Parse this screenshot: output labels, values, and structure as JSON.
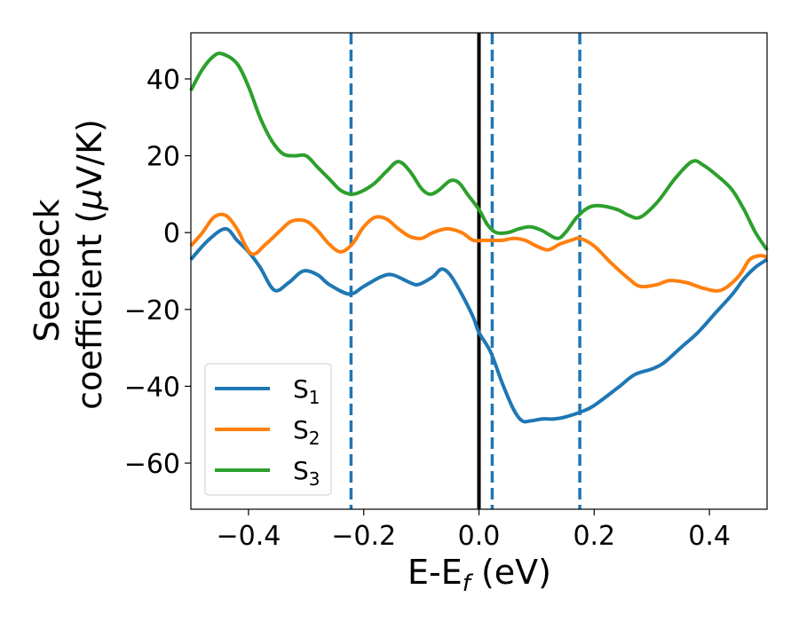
{
  "chart_data": {
    "type": "line",
    "xlabel": "E-E",
    "xlabel_sub": "f",
    "xlabel_unit": " (eV)",
    "ylabel_line1": "Seebeck",
    "ylabel_line2": "coefficient  (",
    "ylabel_mu": "μ",
    "ylabel_unit": "V/K)",
    "xlim": [
      -0.5,
      0.5
    ],
    "ylim": [
      -72,
      52
    ],
    "x_ticks": [
      -0.4,
      -0.2,
      0.0,
      0.2,
      0.4
    ],
    "x_tick_labels": [
      "−0.4",
      "−0.2",
      "0.0",
      "0.2",
      "0.4"
    ],
    "y_ticks": [
      40,
      20,
      0,
      -20,
      -40,
      -60
    ],
    "y_tick_labels": [
      "40",
      "20",
      "0",
      "−20",
      "−40",
      "−60"
    ],
    "grid": false,
    "legend_position": "lower-left",
    "vertical_lines": [
      {
        "x": -0.222,
        "style": "dashed",
        "color": "#1f77b4"
      },
      {
        "x": 0.0,
        "style": "solid",
        "color": "#000000"
      },
      {
        "x": 0.023,
        "style": "dashed",
        "color": "#1f77b4"
      },
      {
        "x": 0.175,
        "style": "dashed",
        "color": "#1f77b4"
      }
    ],
    "series": [
      {
        "name": "S",
        "sub": "1",
        "color": "#1f77b4",
        "points": [
          [
            -0.5,
            -7
          ],
          [
            -0.47,
            -2
          ],
          [
            -0.44,
            1
          ],
          [
            -0.42,
            -2
          ],
          [
            -0.4,
            -5
          ],
          [
            -0.38,
            -9
          ],
          [
            -0.355,
            -15
          ],
          [
            -0.33,
            -13
          ],
          [
            -0.305,
            -10
          ],
          [
            -0.28,
            -11
          ],
          [
            -0.26,
            -13.5
          ],
          [
            -0.225,
            -16
          ],
          [
            -0.2,
            -14
          ],
          [
            -0.17,
            -11.5
          ],
          [
            -0.15,
            -11
          ],
          [
            -0.12,
            -13
          ],
          [
            -0.105,
            -13.5
          ],
          [
            -0.08,
            -11.5
          ],
          [
            -0.065,
            -9.5
          ],
          [
            -0.05,
            -11
          ],
          [
            -0.03,
            -16
          ],
          [
            -0.01,
            -22
          ],
          [
            0,
            -26
          ],
          [
            0.02,
            -31
          ],
          [
            0.04,
            -39
          ],
          [
            0.06,
            -46
          ],
          [
            0.075,
            -49
          ],
          [
            0.09,
            -49
          ],
          [
            0.11,
            -48.5
          ],
          [
            0.13,
            -48.5
          ],
          [
            0.15,
            -48
          ],
          [
            0.18,
            -46.5
          ],
          [
            0.2,
            -45
          ],
          [
            0.24,
            -40.5
          ],
          [
            0.27,
            -37
          ],
          [
            0.3,
            -35.5
          ],
          [
            0.32,
            -34
          ],
          [
            0.35,
            -30
          ],
          [
            0.38,
            -26
          ],
          [
            0.41,
            -21
          ],
          [
            0.44,
            -16
          ],
          [
            0.46,
            -12
          ],
          [
            0.48,
            -9
          ],
          [
            0.5,
            -7
          ]
        ]
      },
      {
        "name": "S",
        "sub": "2",
        "color": "#ff7f0e",
        "points": [
          [
            -0.5,
            -3.5
          ],
          [
            -0.48,
            0
          ],
          [
            -0.46,
            4
          ],
          [
            -0.44,
            4.5
          ],
          [
            -0.42,
            1
          ],
          [
            -0.395,
            -5.5
          ],
          [
            -0.37,
            -3
          ],
          [
            -0.345,
            0.5
          ],
          [
            -0.325,
            3
          ],
          [
            -0.3,
            3
          ],
          [
            -0.28,
            0.5
          ],
          [
            -0.26,
            -3
          ],
          [
            -0.24,
            -5
          ],
          [
            -0.22,
            -3
          ],
          [
            -0.2,
            1.5
          ],
          [
            -0.18,
            4
          ],
          [
            -0.16,
            3.5
          ],
          [
            -0.14,
            1
          ],
          [
            -0.12,
            -1
          ],
          [
            -0.1,
            -1.5
          ],
          [
            -0.08,
            0
          ],
          [
            -0.055,
            1
          ],
          [
            -0.03,
            0
          ],
          [
            -0.01,
            -2
          ],
          [
            0.01,
            -2
          ],
          [
            0.04,
            -2
          ],
          [
            0.06,
            -1.5
          ],
          [
            0.08,
            -2
          ],
          [
            0.1,
            -3.5
          ],
          [
            0.12,
            -4.5
          ],
          [
            0.14,
            -3
          ],
          [
            0.16,
            -2
          ],
          [
            0.175,
            -1.5
          ],
          [
            0.2,
            -3.5
          ],
          [
            0.23,
            -8
          ],
          [
            0.26,
            -12
          ],
          [
            0.28,
            -14
          ],
          [
            0.31,
            -13.5
          ],
          [
            0.33,
            -12.5
          ],
          [
            0.36,
            -13
          ],
          [
            0.39,
            -14.5
          ],
          [
            0.42,
            -15
          ],
          [
            0.45,
            -11.5
          ],
          [
            0.47,
            -7
          ],
          [
            0.49,
            -6
          ],
          [
            0.5,
            -6.5
          ]
        ]
      },
      {
        "name": "S",
        "sub": "3",
        "color": "#2ca02c",
        "points": [
          [
            -0.5,
            37
          ],
          [
            -0.48,
            42.5
          ],
          [
            -0.46,
            46
          ],
          [
            -0.445,
            46.5
          ],
          [
            -0.42,
            44
          ],
          [
            -0.4,
            38
          ],
          [
            -0.38,
            30
          ],
          [
            -0.36,
            24
          ],
          [
            -0.34,
            20.5
          ],
          [
            -0.32,
            20
          ],
          [
            -0.3,
            20
          ],
          [
            -0.28,
            17
          ],
          [
            -0.26,
            14
          ],
          [
            -0.24,
            11
          ],
          [
            -0.22,
            10
          ],
          [
            -0.2,
            11
          ],
          [
            -0.18,
            13
          ],
          [
            -0.16,
            16
          ],
          [
            -0.14,
            18.5
          ],
          [
            -0.12,
            16
          ],
          [
            -0.1,
            11.5
          ],
          [
            -0.085,
            10
          ],
          [
            -0.07,
            11
          ],
          [
            -0.05,
            13.5
          ],
          [
            -0.035,
            13
          ],
          [
            -0.02,
            10
          ],
          [
            0,
            6
          ],
          [
            0.015,
            2
          ],
          [
            0.03,
            0
          ],
          [
            0.05,
            0
          ],
          [
            0.07,
            1
          ],
          [
            0.09,
            1.5
          ],
          [
            0.11,
            0.5
          ],
          [
            0.135,
            -1.5
          ],
          [
            0.15,
            0
          ],
          [
            0.17,
            4
          ],
          [
            0.19,
            6.5
          ],
          [
            0.21,
            7
          ],
          [
            0.24,
            6
          ],
          [
            0.26,
            4.5
          ],
          [
            0.28,
            4
          ],
          [
            0.31,
            8
          ],
          [
            0.34,
            14
          ],
          [
            0.37,
            18.5
          ],
          [
            0.39,
            17.5
          ],
          [
            0.42,
            14
          ],
          [
            0.44,
            11
          ],
          [
            0.46,
            6
          ],
          [
            0.48,
            0
          ],
          [
            0.5,
            -4.5
          ]
        ]
      }
    ]
  }
}
